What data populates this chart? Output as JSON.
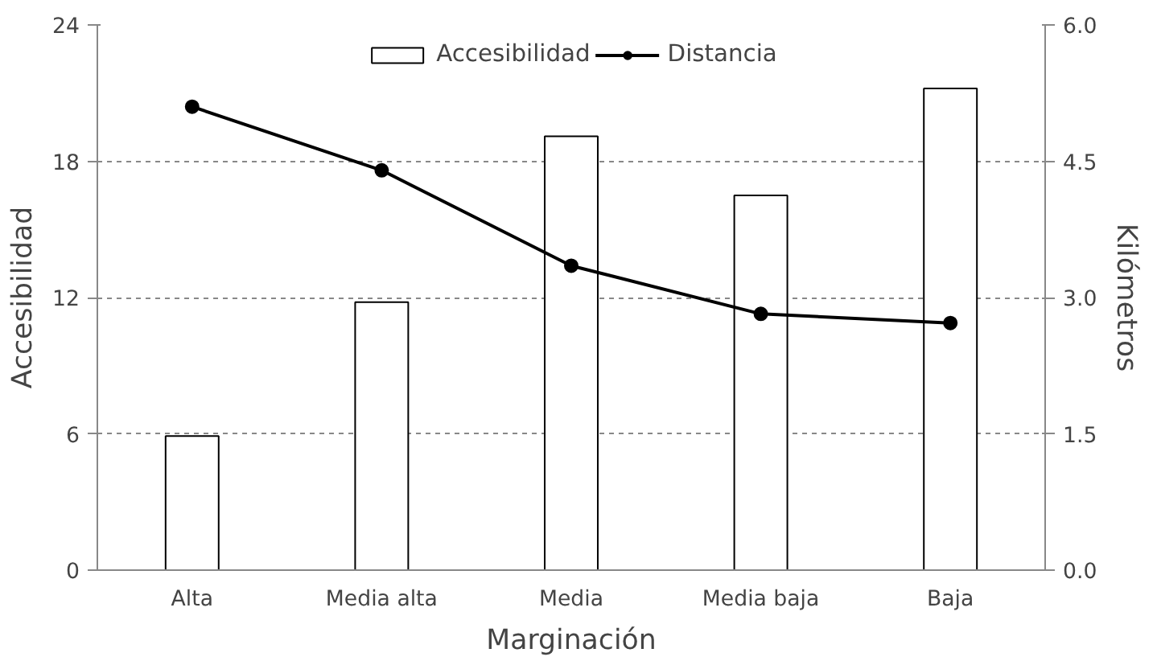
{
  "chart_data": {
    "type": "bar",
    "xlabel": "Marginación",
    "ylabel": "Accesibilidad",
    "y2label": "Kilómetros",
    "categories": [
      "Alta",
      "Media alta",
      "Media",
      "Media baja",
      "Baja"
    ],
    "series": [
      {
        "name": "Accesibilidad",
        "color": "#ffffff",
        "values": [
          5.9,
          11.8,
          19.1,
          16.5,
          21.2
        ]
      },
      {
        "name": "Distancia",
        "type": "line",
        "axis": "y2",
        "color": "#000000",
        "values": [
          5.1,
          4.4,
          3.35,
          2.82,
          2.72
        ]
      }
    ],
    "ylim": [
      0,
      24
    ],
    "yticks": [
      0,
      6,
      12,
      18,
      24
    ],
    "y2lim": [
      0,
      6
    ],
    "y2ticks": [
      {
        "value": 0,
        "label": "0.0"
      },
      {
        "value": 1.5,
        "label": "1.5"
      },
      {
        "value": 3,
        "label": "3.0"
      },
      {
        "value": 4.5,
        "label": "4.5"
      },
      {
        "value": 6,
        "label": "6.0"
      }
    ],
    "grid": "y",
    "legend": "top",
    "marker": "circle",
    "line_style": "solid"
  }
}
